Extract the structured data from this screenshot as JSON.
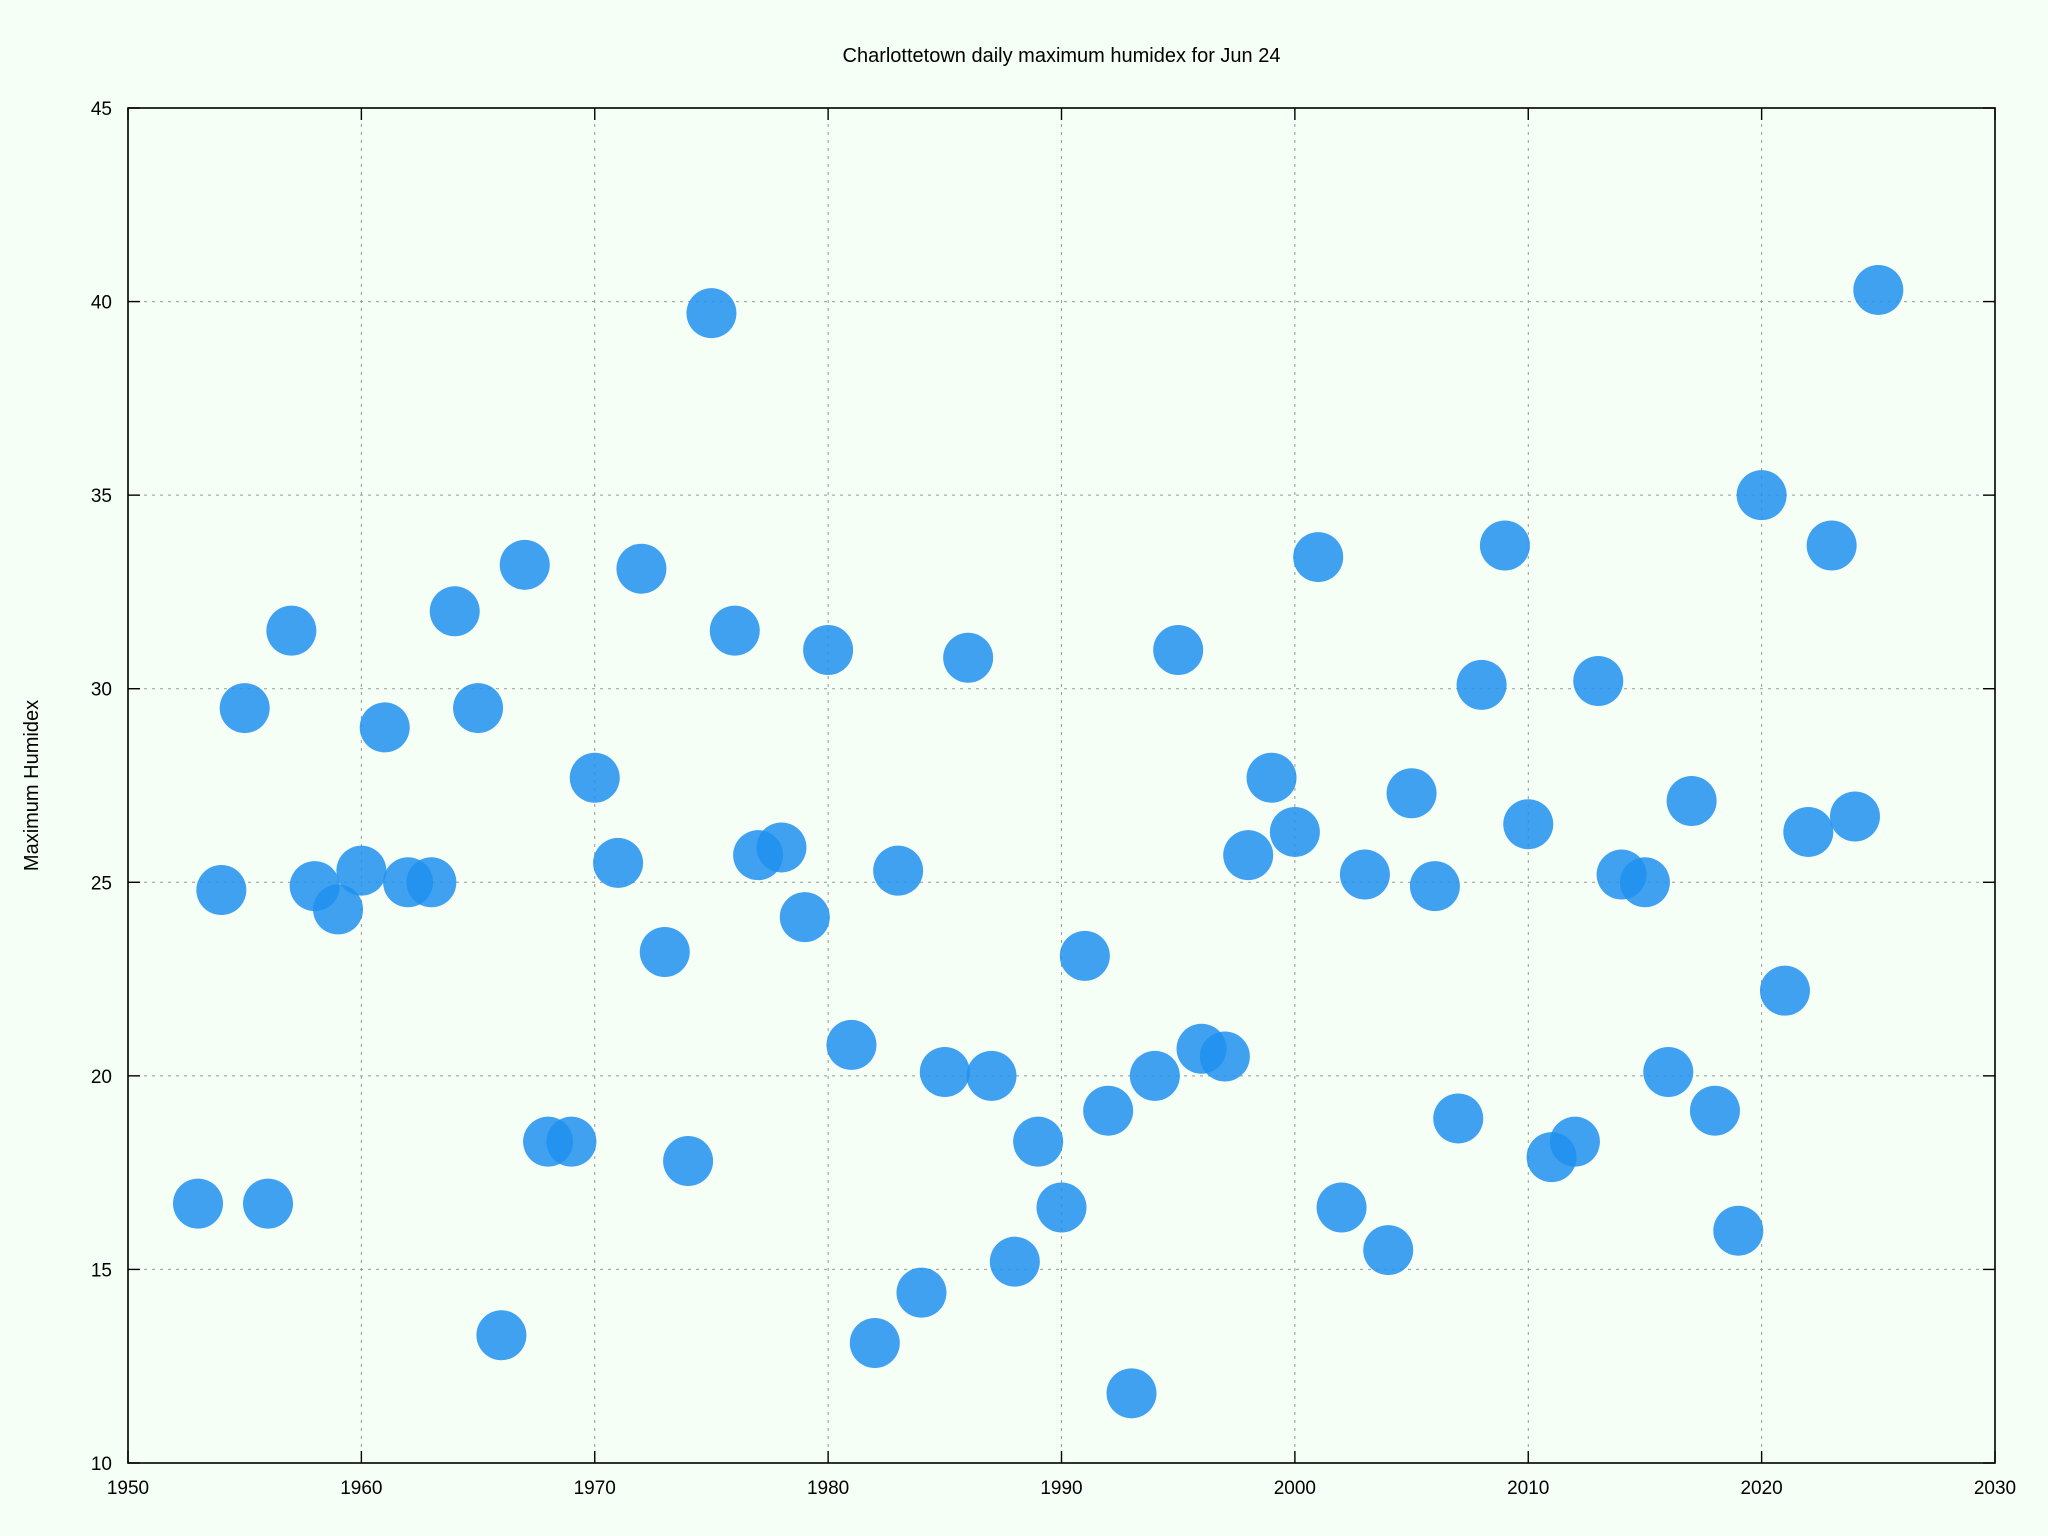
{
  "chart_data": {
    "type": "scatter",
    "title": "Charlottetown daily maximum humidex for Jun 24",
    "xlabel": "",
    "ylabel": "Maximum Humidex",
    "xlim": [
      1950,
      2030
    ],
    "ylim": [
      10,
      45
    ],
    "xticks": [
      1950,
      1960,
      1970,
      1980,
      1990,
      2000,
      2010,
      2020,
      2030
    ],
    "yticks": [
      10,
      15,
      20,
      25,
      30,
      35,
      40,
      45
    ],
    "grid": true,
    "legend": "none",
    "colors": {
      "marker": "#1e90ee",
      "grid": "#999999",
      "background": "#f5fff5"
    },
    "points": [
      {
        "x": 1953,
        "y": 16.7
      },
      {
        "x": 1954,
        "y": 24.8
      },
      {
        "x": 1955,
        "y": 29.5
      },
      {
        "x": 1956,
        "y": 16.7
      },
      {
        "x": 1957,
        "y": 31.5
      },
      {
        "x": 1958,
        "y": 24.9
      },
      {
        "x": 1959,
        "y": 24.3
      },
      {
        "x": 1960,
        "y": 25.3
      },
      {
        "x": 1961,
        "y": 29.0
      },
      {
        "x": 1962,
        "y": 25.0
      },
      {
        "x": 1963,
        "y": 25.0
      },
      {
        "x": 1964,
        "y": 32.0
      },
      {
        "x": 1965,
        "y": 29.5
      },
      {
        "x": 1966,
        "y": 13.3
      },
      {
        "x": 1967,
        "y": 33.2
      },
      {
        "x": 1968,
        "y": 18.3
      },
      {
        "x": 1969,
        "y": 18.3
      },
      {
        "x": 1970,
        "y": 27.7
      },
      {
        "x": 1971,
        "y": 25.5
      },
      {
        "x": 1972,
        "y": 33.1
      },
      {
        "x": 1973,
        "y": 23.2
      },
      {
        "x": 1974,
        "y": 17.8
      },
      {
        "x": 1975,
        "y": 39.7
      },
      {
        "x": 1976,
        "y": 31.5
      },
      {
        "x": 1977,
        "y": 25.7
      },
      {
        "x": 1978,
        "y": 25.9
      },
      {
        "x": 1979,
        "y": 24.1
      },
      {
        "x": 1980,
        "y": 31.0
      },
      {
        "x": 1981,
        "y": 20.8
      },
      {
        "x": 1982,
        "y": 13.1
      },
      {
        "x": 1983,
        "y": 25.3
      },
      {
        "x": 1984,
        "y": 14.4
      },
      {
        "x": 1985,
        "y": 20.1
      },
      {
        "x": 1986,
        "y": 30.8
      },
      {
        "x": 1987,
        "y": 20.0
      },
      {
        "x": 1988,
        "y": 15.2
      },
      {
        "x": 1989,
        "y": 18.3
      },
      {
        "x": 1990,
        "y": 16.6
      },
      {
        "x": 1991,
        "y": 23.1
      },
      {
        "x": 1992,
        "y": 19.1
      },
      {
        "x": 1993,
        "y": 11.8
      },
      {
        "x": 1994,
        "y": 20.0
      },
      {
        "x": 1995,
        "y": 31.0
      },
      {
        "x": 1996,
        "y": 20.7
      },
      {
        "x": 1997,
        "y": 20.5
      },
      {
        "x": 1998,
        "y": 25.7
      },
      {
        "x": 1999,
        "y": 27.7
      },
      {
        "x": 2000,
        "y": 26.3
      },
      {
        "x": 2001,
        "y": 33.4
      },
      {
        "x": 2002,
        "y": 16.6
      },
      {
        "x": 2003,
        "y": 25.2
      },
      {
        "x": 2004,
        "y": 15.5
      },
      {
        "x": 2005,
        "y": 27.3
      },
      {
        "x": 2006,
        "y": 24.9
      },
      {
        "x": 2007,
        "y": 18.9
      },
      {
        "x": 2008,
        "y": 30.1
      },
      {
        "x": 2009,
        "y": 33.7
      },
      {
        "x": 2010,
        "y": 26.5
      },
      {
        "x": 2011,
        "y": 17.9
      },
      {
        "x": 2012,
        "y": 18.3
      },
      {
        "x": 2013,
        "y": 30.2
      },
      {
        "x": 2014,
        "y": 25.2
      },
      {
        "x": 2015,
        "y": 25.0
      },
      {
        "x": 2016,
        "y": 20.1
      },
      {
        "x": 2017,
        "y": 27.1
      },
      {
        "x": 2018,
        "y": 19.1
      },
      {
        "x": 2019,
        "y": 16.0
      },
      {
        "x": 2020,
        "y": 35.0
      },
      {
        "x": 2021,
        "y": 22.2
      },
      {
        "x": 2022,
        "y": 26.3
      },
      {
        "x": 2023,
        "y": 33.7
      },
      {
        "x": 2024,
        "y": 26.7
      },
      {
        "x": 2025,
        "y": 40.3
      }
    ]
  }
}
